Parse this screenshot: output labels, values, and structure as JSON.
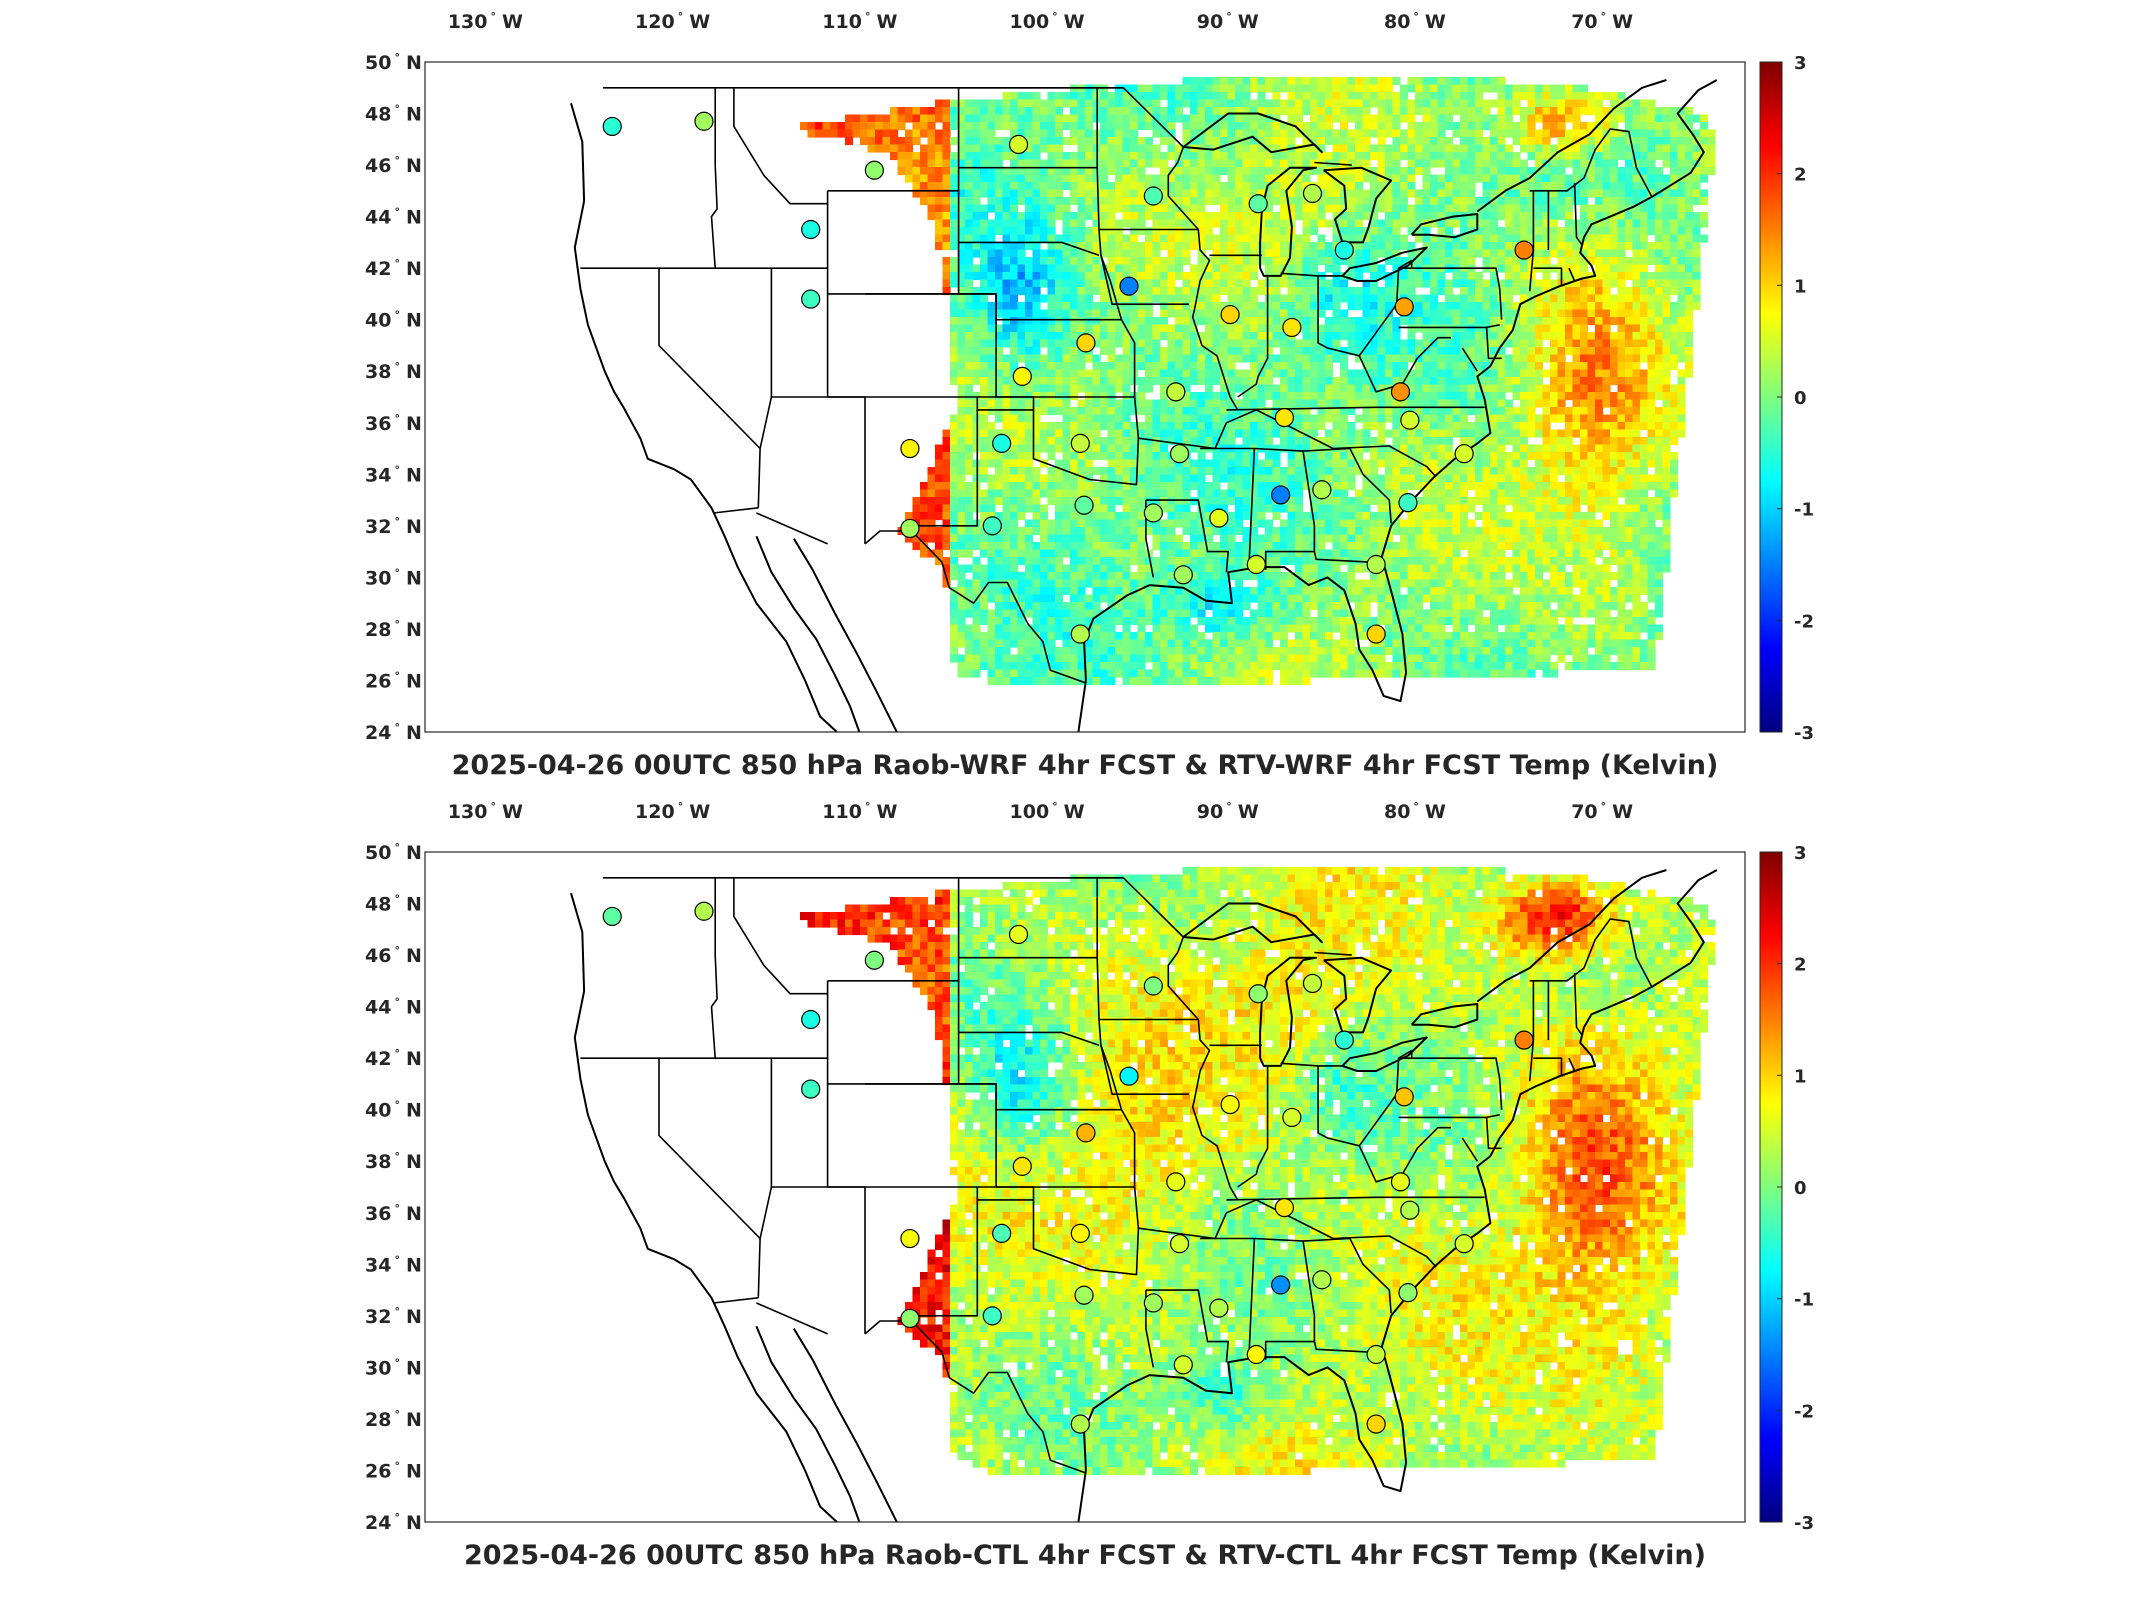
{
  "colorbar_ticks": [
    "3",
    "2",
    "1",
    "0",
    "-1",
    "-2",
    "-3"
  ],
  "colormap": [
    "#00007f",
    "#0000ff",
    "#007fff",
    "#00ffff",
    "#7fff7f",
    "#ffff00",
    "#ff7f00",
    "#ff0000",
    "#7f0000"
  ],
  "lon_ticks": [
    {
      "deg": "130",
      "hemi": "W"
    },
    {
      "deg": "120",
      "hemi": "W"
    },
    {
      "deg": "110",
      "hemi": "W"
    },
    {
      "deg": "100",
      "hemi": "W"
    },
    {
      "deg": "90",
      "hemi": "W"
    },
    {
      "deg": "80",
      "hemi": "W"
    },
    {
      "deg": "70",
      "hemi": "W"
    }
  ],
  "lat_ticks": [
    {
      "deg": "50",
      "hemi": "N"
    },
    {
      "deg": "48",
      "hemi": "N"
    },
    {
      "deg": "46",
      "hemi": "N"
    },
    {
      "deg": "44",
      "hemi": "N"
    },
    {
      "deg": "42",
      "hemi": "N"
    },
    {
      "deg": "40",
      "hemi": "N"
    },
    {
      "deg": "38",
      "hemi": "N"
    },
    {
      "deg": "36",
      "hemi": "N"
    },
    {
      "deg": "34",
      "hemi": "N"
    },
    {
      "deg": "32",
      "hemi": "N"
    },
    {
      "deg": "30",
      "hemi": "N"
    },
    {
      "deg": "28",
      "hemi": "N"
    },
    {
      "deg": "26",
      "hemi": "N"
    },
    {
      "deg": "24",
      "hemi": "N"
    }
  ],
  "panels": [
    {
      "title": "2025-04-26 00UTC 850 hPa Raob-WRF 4hr FCST & RTV-WRF 4hr FCST Temp (Kelvin)",
      "stations": [
        {
          "lon": -122.5,
          "lat": 47.5,
          "v": -0.5
        },
        {
          "lon": -117.6,
          "lat": 47.7,
          "v": 0.2
        },
        {
          "lon": -108.5,
          "lat": 45.8,
          "v": 0.1
        },
        {
          "lon": -100.8,
          "lat": 46.8,
          "v": 0.5
        },
        {
          "lon": -93.6,
          "lat": 44.8,
          "v": -0.3
        },
        {
          "lon": -88.0,
          "lat": 44.5,
          "v": -0.2
        },
        {
          "lon": -85.1,
          "lat": 44.9,
          "v": 0.3
        },
        {
          "lon": -83.4,
          "lat": 42.7,
          "v": -0.6
        },
        {
          "lon": -73.8,
          "lat": 42.7,
          "v": 1.5
        },
        {
          "lon": -111.9,
          "lat": 43.5,
          "v": -0.6
        },
        {
          "lon": -111.9,
          "lat": 40.8,
          "v": -0.4
        },
        {
          "lon": -94.9,
          "lat": 41.3,
          "v": -1.5
        },
        {
          "lon": -89.5,
          "lat": 40.2,
          "v": 1.0
        },
        {
          "lon": -86.2,
          "lat": 39.7,
          "v": 0.9
        },
        {
          "lon": -80.2,
          "lat": 40.5,
          "v": 1.3
        },
        {
          "lon": -97.2,
          "lat": 39.1,
          "v": 1.0
        },
        {
          "lon": -100.6,
          "lat": 37.8,
          "v": 0.8
        },
        {
          "lon": -92.4,
          "lat": 37.2,
          "v": 0.4
        },
        {
          "lon": -86.6,
          "lat": 36.2,
          "v": 0.9
        },
        {
          "lon": -80.4,
          "lat": 37.2,
          "v": 1.4
        },
        {
          "lon": -79.9,
          "lat": 36.1,
          "v": 0.5
        },
        {
          "lon": -106.6,
          "lat": 35.0,
          "v": 0.8
        },
        {
          "lon": -101.7,
          "lat": 35.2,
          "v": -0.6
        },
        {
          "lon": -97.5,
          "lat": 35.2,
          "v": 0.4
        },
        {
          "lon": -92.2,
          "lat": 34.8,
          "v": 0.2
        },
        {
          "lon": -86.8,
          "lat": 33.2,
          "v": -1.5
        },
        {
          "lon": -84.6,
          "lat": 33.4,
          "v": 0.3
        },
        {
          "lon": -80.0,
          "lat": 32.9,
          "v": -0.4
        },
        {
          "lon": -77.0,
          "lat": 34.8,
          "v": 0.5
        },
        {
          "lon": -106.6,
          "lat": 31.9,
          "v": 0.2
        },
        {
          "lon": -102.2,
          "lat": 32.0,
          "v": -0.4
        },
        {
          "lon": -97.3,
          "lat": 32.8,
          "v": -0.2
        },
        {
          "lon": -93.6,
          "lat": 32.5,
          "v": 0.2
        },
        {
          "lon": -90.1,
          "lat": 32.3,
          "v": 0.6
        },
        {
          "lon": -92.0,
          "lat": 30.1,
          "v": 0.2
        },
        {
          "lon": -88.1,
          "lat": 30.5,
          "v": 0.5
        },
        {
          "lon": -81.7,
          "lat": 30.5,
          "v": 0.3
        },
        {
          "lon": -97.5,
          "lat": 27.8,
          "v": 0.3
        },
        {
          "lon": -81.7,
          "lat": 27.8,
          "v": 1.0
        }
      ]
    },
    {
      "title": "2025-04-26 00UTC 850 hPa Raob-CTL 4hr FCST & RTV-CTL 4hr FCST Temp (Kelvin)",
      "stations": [
        {
          "lon": -122.5,
          "lat": 47.5,
          "v": -0.2
        },
        {
          "lon": -117.6,
          "lat": 47.7,
          "v": 0.3
        },
        {
          "lon": -108.5,
          "lat": 45.8,
          "v": 0.0
        },
        {
          "lon": -100.8,
          "lat": 46.8,
          "v": 0.6
        },
        {
          "lon": -93.6,
          "lat": 44.8,
          "v": 0.0
        },
        {
          "lon": -88.0,
          "lat": 44.5,
          "v": 0.1
        },
        {
          "lon": -85.1,
          "lat": 44.9,
          "v": 0.4
        },
        {
          "lon": -83.4,
          "lat": 42.7,
          "v": -0.5
        },
        {
          "lon": -73.8,
          "lat": 42.7,
          "v": 1.5
        },
        {
          "lon": -111.9,
          "lat": 43.5,
          "v": -0.6
        },
        {
          "lon": -111.9,
          "lat": 40.8,
          "v": -0.4
        },
        {
          "lon": -94.9,
          "lat": 41.3,
          "v": -0.8
        },
        {
          "lon": -89.5,
          "lat": 40.2,
          "v": 0.7
        },
        {
          "lon": -86.2,
          "lat": 39.7,
          "v": 0.5
        },
        {
          "lon": -80.2,
          "lat": 40.5,
          "v": 1.1
        },
        {
          "lon": -97.2,
          "lat": 39.1,
          "v": 1.2
        },
        {
          "lon": -100.6,
          "lat": 37.8,
          "v": 0.9
        },
        {
          "lon": -92.4,
          "lat": 37.2,
          "v": 0.6
        },
        {
          "lon": -86.6,
          "lat": 36.2,
          "v": 0.9
        },
        {
          "lon": -80.4,
          "lat": 37.2,
          "v": 0.6
        },
        {
          "lon": -79.9,
          "lat": 36.1,
          "v": 0.3
        },
        {
          "lon": -106.6,
          "lat": 35.0,
          "v": 0.7
        },
        {
          "lon": -101.7,
          "lat": 35.2,
          "v": -0.3
        },
        {
          "lon": -97.5,
          "lat": 35.2,
          "v": 0.8
        },
        {
          "lon": -92.2,
          "lat": 34.8,
          "v": 0.5
        },
        {
          "lon": -86.8,
          "lat": 33.2,
          "v": -1.4
        },
        {
          "lon": -84.6,
          "lat": 33.4,
          "v": 0.3
        },
        {
          "lon": -80.0,
          "lat": 32.9,
          "v": 0.1
        },
        {
          "lon": -77.0,
          "lat": 34.8,
          "v": 0.5
        },
        {
          "lon": -106.6,
          "lat": 31.9,
          "v": 0.1
        },
        {
          "lon": -102.2,
          "lat": 32.0,
          "v": -0.4
        },
        {
          "lon": -97.3,
          "lat": 32.8,
          "v": 0.2
        },
        {
          "lon": -93.6,
          "lat": 32.5,
          "v": 0.2
        },
        {
          "lon": -90.1,
          "lat": 32.3,
          "v": 0.3
        },
        {
          "lon": -92.0,
          "lat": 30.1,
          "v": 0.5
        },
        {
          "lon": -88.1,
          "lat": 30.5,
          "v": 0.8
        },
        {
          "lon": -81.7,
          "lat": 30.5,
          "v": 0.4
        },
        {
          "lon": -97.5,
          "lat": 27.8,
          "v": 0.3
        },
        {
          "lon": -81.7,
          "lat": 27.8,
          "v": 1.0
        }
      ]
    }
  ]
}
